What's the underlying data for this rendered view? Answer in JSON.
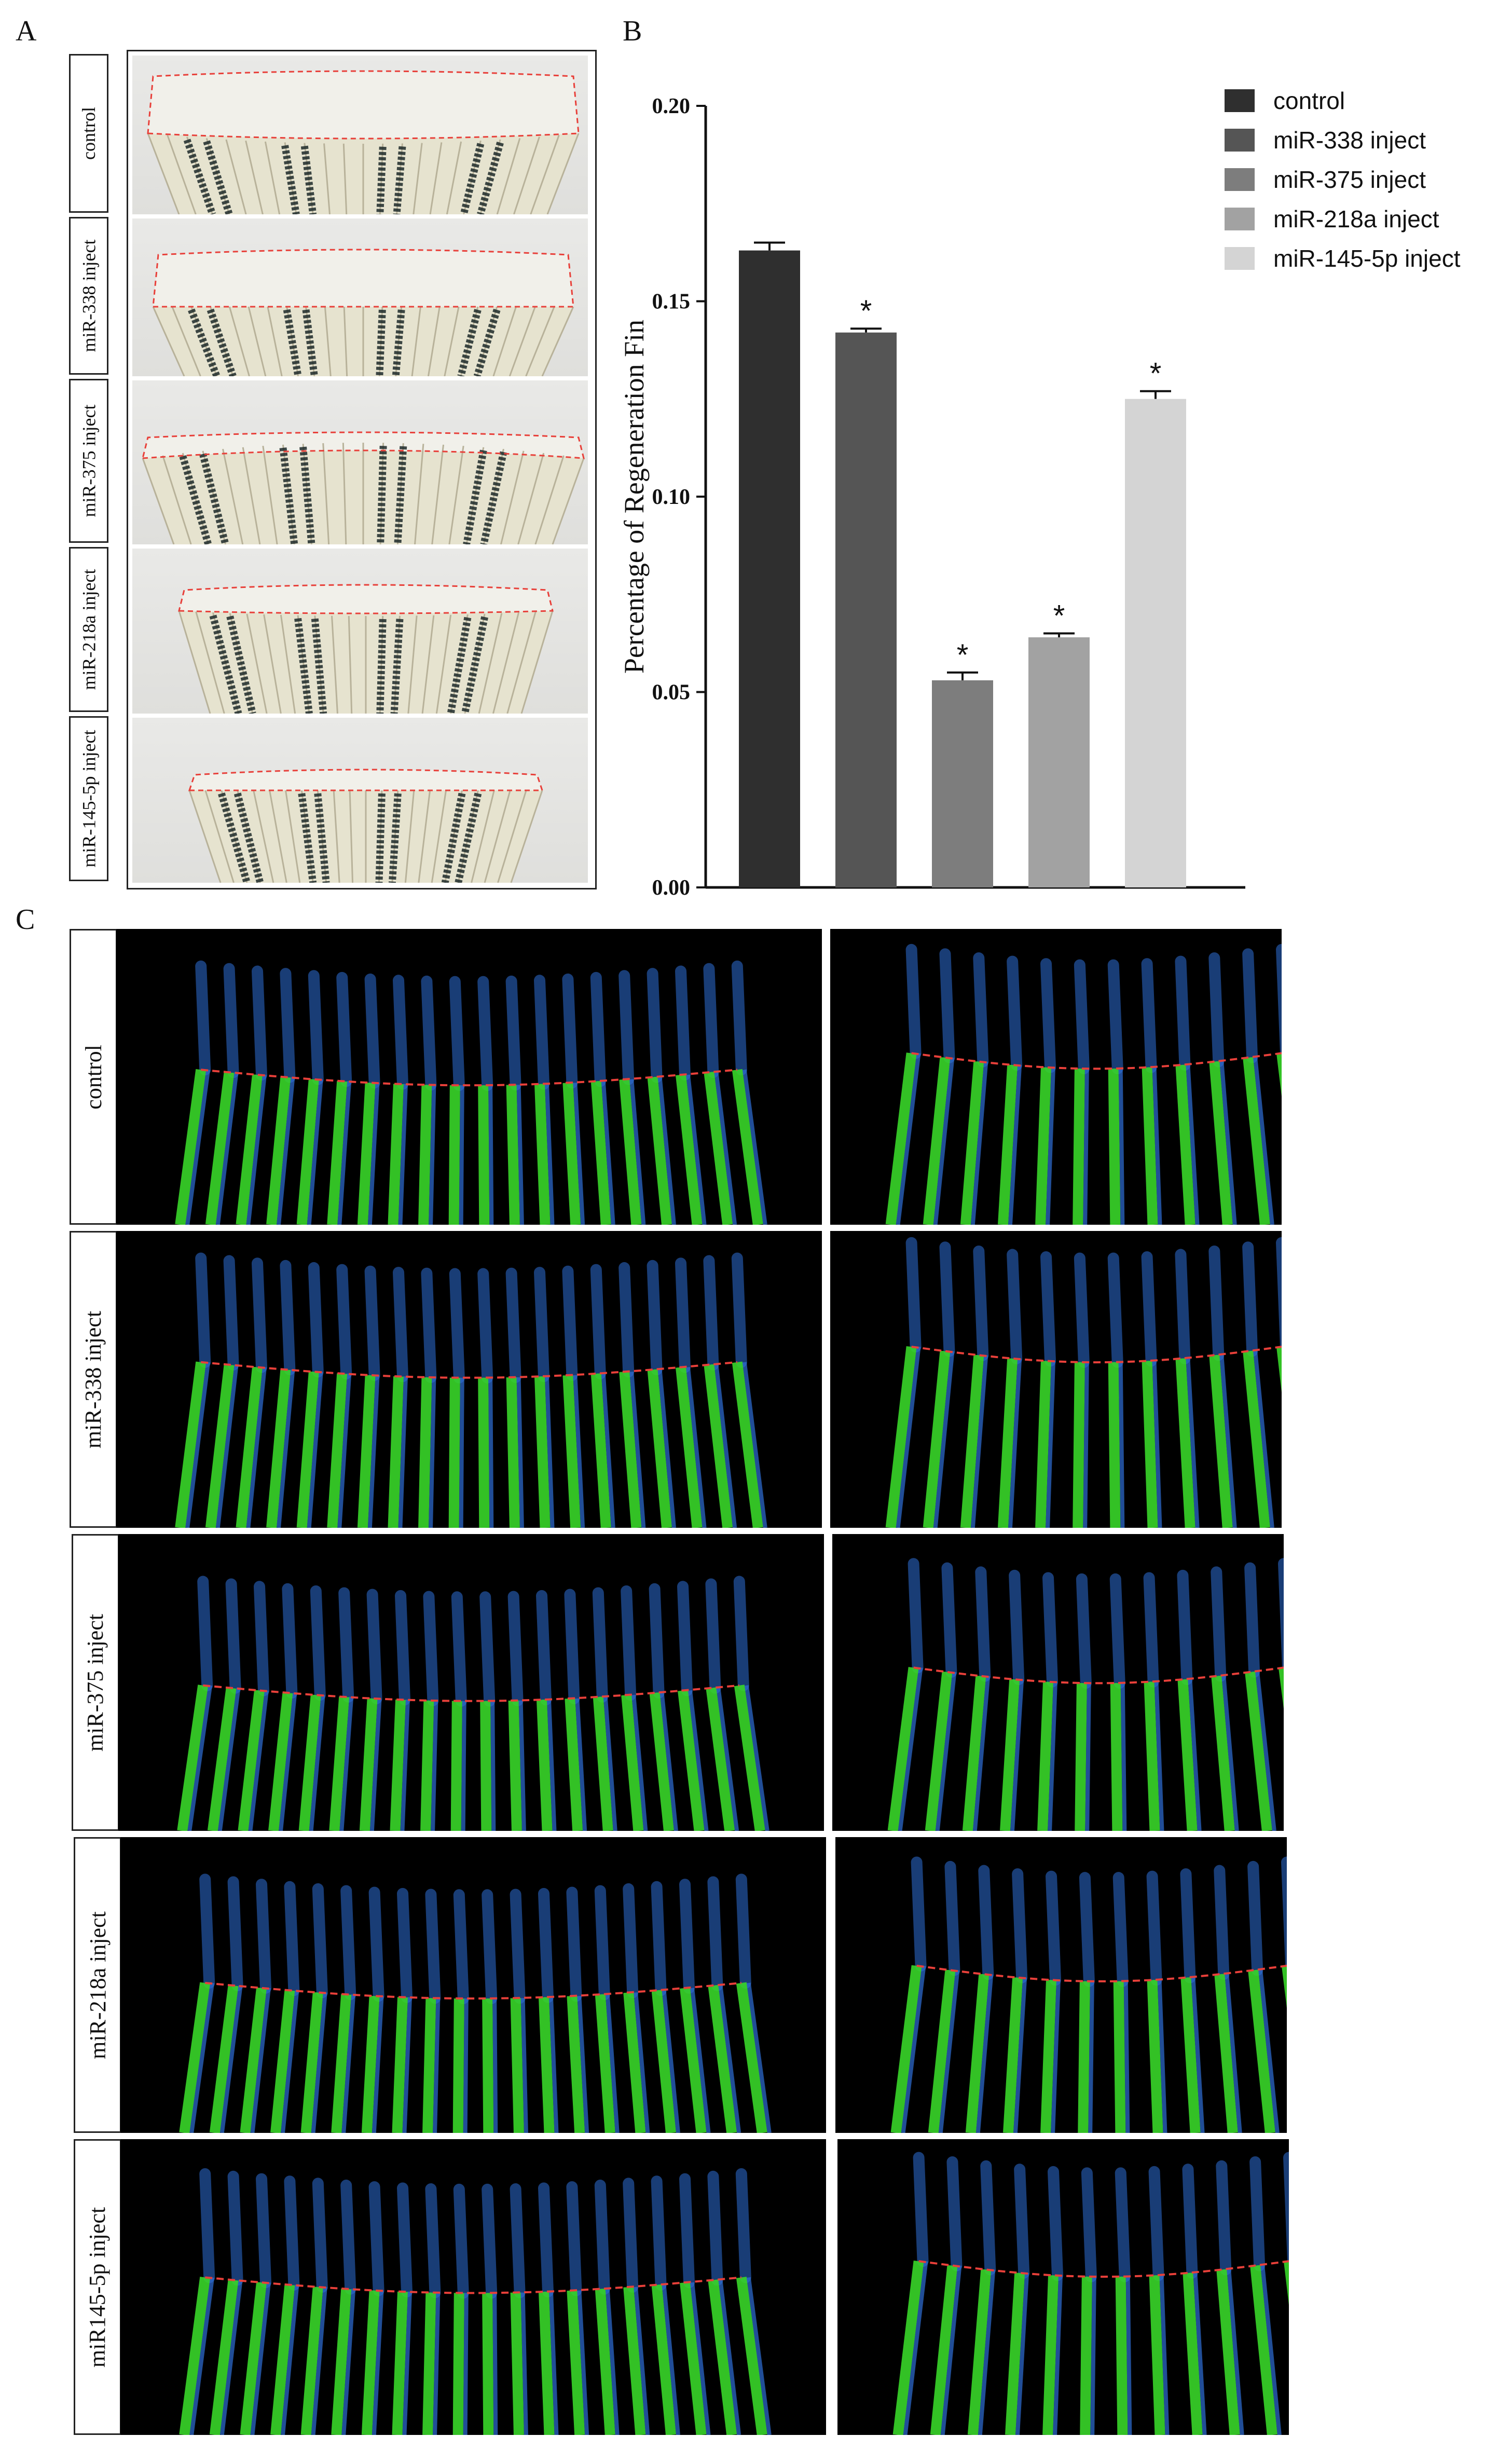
{
  "panels": {
    "a": "A",
    "b": "B",
    "c": "C"
  },
  "panel_a": {
    "labels": [
      "control",
      "miR-338 inject",
      "miR-375 inject",
      "miR-218a inject",
      "miR-145-5p inject"
    ]
  },
  "panel_c": {
    "labels": [
      "control",
      "miR-338 inject",
      "miR-375 inject",
      "miR-218a inject",
      "miR145-5p inject"
    ]
  },
  "colors": {
    "bar_control": "#2f2f2f",
    "bar_338": "#555555",
    "bar_375": "#7d7d7d",
    "bar_218a": "#a2a2a2",
    "bar_145": "#d4d4d4",
    "annotation_dash": "#e8403a",
    "fluor_green": "#39d62a",
    "fluor_blue": "#2f6fd8"
  },
  "chart_data": {
    "type": "bar",
    "ylabel": "Percentage of Regeneration Fin",
    "ylim": [
      0,
      0.2
    ],
    "yticks": [
      "0.00",
      "0.05",
      "0.10",
      "0.15",
      "0.20"
    ],
    "categories": [
      "control",
      "miR-338 inject",
      "miR-375 inject",
      "miR-218a inject",
      "miR-145-5p inject"
    ],
    "values": [
      0.163,
      0.142,
      0.053,
      0.064,
      0.125
    ],
    "error": [
      0.002,
      0.001,
      0.002,
      0.001,
      0.002
    ],
    "significance": [
      "",
      "*",
      "*",
      "*",
      "*"
    ],
    "legend": [
      "control",
      "miR-338 inject",
      "miR-375 inject",
      "miR-218a inject",
      "miR-145-5p inject"
    ],
    "legend_position": "top-right",
    "grid": false
  }
}
